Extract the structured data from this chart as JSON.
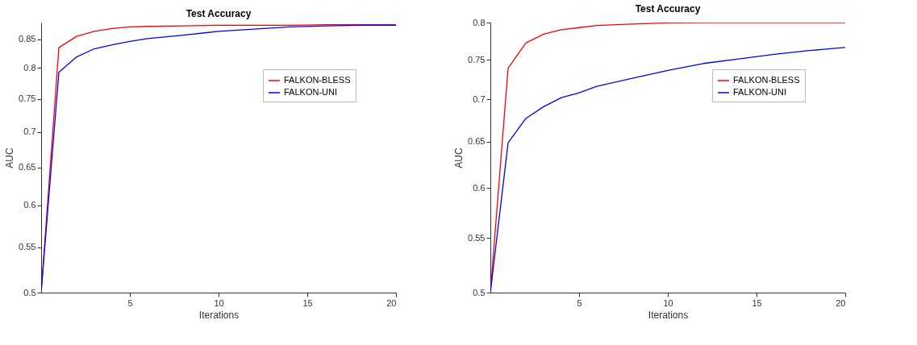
{
  "chart_data": [
    {
      "type": "line",
      "title": "Test Accuracy",
      "xlabel": "Iterations",
      "ylabel": "AUC",
      "log": "y",
      "xlim": [
        0,
        20
      ],
      "xticks": [
        5,
        10,
        15,
        20
      ],
      "ylim": [
        0.5,
        0.88
      ],
      "yticks": [
        0.5,
        0.55,
        0.6,
        0.65,
        0.7,
        0.75,
        0.8,
        0.85
      ],
      "grid": false,
      "legend": "top right",
      "marker": "none",
      "line_style": "solid",
      "x": [
        0,
        1,
        2,
        3,
        4,
        5,
        6,
        8,
        10,
        12,
        14,
        16,
        18,
        20
      ],
      "series": [
        {
          "name": "FALKON-BLESS",
          "color": "#ff0000",
          "values": [
            0.5,
            0.835,
            0.855,
            0.864,
            0.869,
            0.872,
            0.873,
            0.874,
            0.875,
            0.875,
            0.875,
            0.876,
            0.876,
            0.876
          ]
        },
        {
          "name": "FALKON-UNI",
          "color": "#0000ff",
          "values": [
            0.5,
            0.793,
            0.819,
            0.833,
            0.84,
            0.846,
            0.851,
            0.857,
            0.864,
            0.868,
            0.872,
            0.874,
            0.875,
            0.875
          ]
        }
      ]
    },
    {
      "type": "line",
      "title": "Test Accuracy",
      "xlabel": "Iterations",
      "ylabel": "AUC",
      "log": "y",
      "xlim": [
        0,
        20
      ],
      "xticks": [
        5,
        10,
        15,
        20
      ],
      "ylim": [
        0.5,
        0.8
      ],
      "yticks": [
        0.5,
        0.55,
        0.6,
        0.65,
        0.7,
        0.75,
        0.8
      ],
      "grid": false,
      "legend": "top right",
      "marker": "none",
      "line_style": "solid",
      "x": [
        0,
        1,
        2,
        3,
        4,
        5,
        6,
        8,
        10,
        12,
        14,
        16,
        18,
        20
      ],
      "series": [
        {
          "name": "FALKON-BLESS",
          "color": "#ff0000",
          "values": [
            0.5,
            0.739,
            0.772,
            0.784,
            0.79,
            0.793,
            0.796,
            0.798,
            0.7995,
            0.8,
            0.8,
            0.8,
            0.8,
            0.8
          ]
        },
        {
          "name": "FALKON-UNI",
          "color": "#0000ff",
          "values": [
            0.5,
            0.649,
            0.677,
            0.691,
            0.702,
            0.708,
            0.716,
            0.726,
            0.736,
            0.745,
            0.751,
            0.757,
            0.762,
            0.766
          ]
        }
      ]
    }
  ]
}
